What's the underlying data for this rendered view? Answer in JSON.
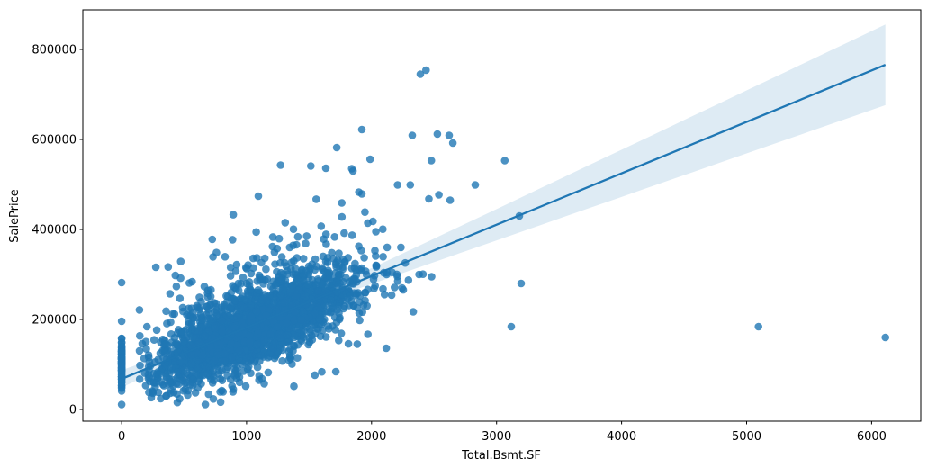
{
  "chart_data": {
    "type": "scatter",
    "title": "",
    "xlabel": "Total.Bsmt.SF",
    "ylabel": "SalePrice",
    "xlim": [
      -310,
      6393
    ],
    "ylim": [
      -26000,
      888000
    ],
    "xticks": [
      0,
      1000,
      2000,
      3000,
      4000,
      5000,
      6000
    ],
    "yticks": [
      0,
      200000,
      400000,
      600000,
      800000
    ],
    "grid": false,
    "legend": null,
    "marker": {
      "color": "#1f77b4",
      "opacity": 0.8,
      "radius": 4.3
    },
    "regression": {
      "x_start": 0,
      "x_end": 6110,
      "intercept": 68000,
      "slope": 114.2,
      "color": "#1f77b4",
      "width": 2.3
    },
    "ci_band": {
      "center_x": 1050,
      "min_half_width": 5300,
      "spread": 300,
      "fill": "#1f77b4",
      "opacity": 0.15
    },
    "outlier_points": [
      [
        0,
        11000
      ],
      [
        0,
        196000
      ],
      [
        0,
        282000
      ],
      [
        274,
        316000
      ],
      [
        670,
        11000
      ],
      [
        725,
        378000
      ],
      [
        1094,
        474000
      ],
      [
        1272,
        543000
      ],
      [
        1514,
        541000
      ],
      [
        1634,
        536000
      ],
      [
        1721,
        582000
      ],
      [
        1841,
        535000
      ],
      [
        1851,
        530000
      ],
      [
        1898,
        483000
      ],
      [
        1922,
        479000
      ],
      [
        1922,
        622000
      ],
      [
        1988,
        556000
      ],
      [
        1714,
        84000
      ],
      [
        2117,
        136000
      ],
      [
        2160,
        254000
      ],
      [
        2244,
        270000
      ],
      [
        2333,
        217000
      ],
      [
        2208,
        499000
      ],
      [
        2309,
        499000
      ],
      [
        2380,
        300000
      ],
      [
        2480,
        295000
      ],
      [
        2390,
        745000
      ],
      [
        2435,
        754000
      ],
      [
        2325,
        609000
      ],
      [
        2458,
        468000
      ],
      [
        2478,
        553000
      ],
      [
        2526,
        612000
      ],
      [
        2538,
        477000
      ],
      [
        2620,
        609000
      ],
      [
        2628,
        465000
      ],
      [
        2650,
        592000
      ],
      [
        2829,
        499000
      ],
      [
        3065,
        553000
      ],
      [
        3117,
        184000
      ],
      [
        3182,
        430000
      ],
      [
        3196,
        280000
      ],
      [
        5095,
        184000
      ],
      [
        6110,
        160000
      ]
    ],
    "cluster_spec": [
      {
        "name": "main-core",
        "seed": 7,
        "n": 1900,
        "on_trend": true,
        "x": {
          "mean": 1060,
          "sd": 400,
          "min": 140,
          "max": 2430
        },
        "resid": {
          "mean": -8000,
          "sd": 38000
        },
        "y_min": 13000,
        "y_max": 480000
      },
      {
        "name": "main-upper-fringe",
        "seed": 11,
        "n": 430,
        "on_trend": true,
        "x": {
          "mean": 1030,
          "sd": 430,
          "min": 140,
          "max": 2430
        },
        "resid": {
          "mean": 30000,
          "sd": 78000
        },
        "y_min": 13000,
        "y_max": 470000
      },
      {
        "name": "no-basement-column",
        "seed": 23,
        "n": 80,
        "on_trend": false,
        "x": {
          "mean": 0,
          "sd": 0,
          "min": 0,
          "max": 0
        },
        "y": {
          "mean": 100000,
          "sd": 33000,
          "min": 27000,
          "max": 163000
        }
      }
    ]
  }
}
